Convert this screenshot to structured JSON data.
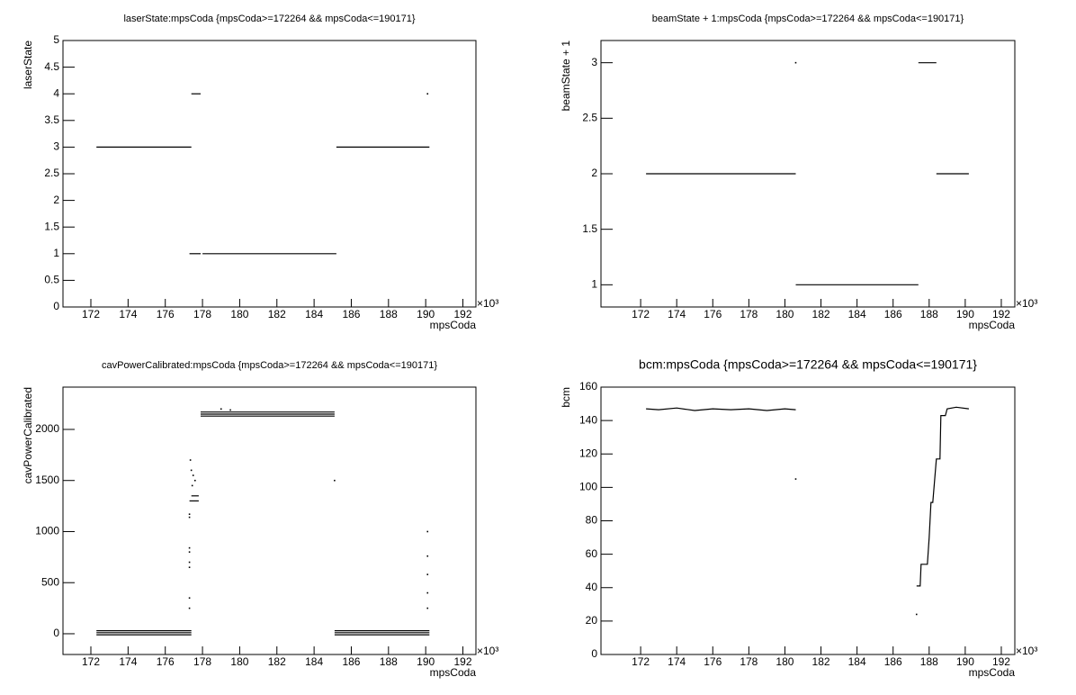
{
  "chart_data": [
    {
      "type": "line",
      "title": "laserState:mpsCoda {mpsCoda>=172264 && mpsCoda<=190171}",
      "x_label": "mpsCoda",
      "y_label": "laserState",
      "x_multiplier": "×10³",
      "color": "#000000",
      "x": [
        172.3,
        177.4,
        null,
        177.4,
        177.9,
        null,
        177.3,
        177.9,
        null,
        178.0,
        185.2,
        null,
        185.2,
        190.2,
        null,
        190.1
      ],
      "values": [
        3,
        3,
        null,
        4,
        4,
        null,
        1,
        1,
        null,
        1,
        1,
        null,
        3,
        3,
        null,
        4
      ],
      "xlim": [
        170.5,
        192.7
      ],
      "xticks": [
        172,
        174,
        176,
        178,
        180,
        182,
        184,
        186,
        188,
        190,
        192
      ],
      "ylim": [
        0,
        5
      ],
      "yticks": [
        0,
        0.5,
        1,
        1.5,
        2,
        2.5,
        3,
        3.5,
        4,
        4.5,
        5
      ]
    },
    {
      "type": "line",
      "title": "beamState + 1:mpsCoda {mpsCoda>=172264 && mpsCoda<=190171}",
      "x_label": "mpsCoda",
      "y_label": "beamState + 1",
      "x_multiplier": "×10³",
      "color": "#000000",
      "x": [
        172.3,
        180.6,
        null,
        180.6,
        null,
        180.6,
        187.4,
        null,
        187.4,
        188.4,
        null,
        188.4,
        190.2
      ],
      "values": [
        2,
        2,
        null,
        3,
        null,
        1,
        1,
        null,
        3,
        3,
        null,
        2,
        2
      ],
      "xlim": [
        169.8,
        192.75
      ],
      "xticks": [
        172,
        174,
        176,
        178,
        180,
        182,
        184,
        186,
        188,
        190,
        192
      ],
      "ylim": [
        0.8,
        3.2
      ],
      "yticks": [
        1,
        1.5,
        2,
        2.5,
        3
      ]
    },
    {
      "type": "line",
      "title": "cavPowerCalibrated:mpsCoda {mpsCoda>=172264 && mpsCoda<=190171}",
      "x_label": "mpsCoda",
      "y_label": "cavPowerCalibrated",
      "x_multiplier": "×10³",
      "color": "#000000",
      "x": [
        172.3,
        177.4,
        null,
        172.3,
        177.4,
        null,
        172.3,
        177.4,
        null,
        177.3,
        null,
        177.3,
        null,
        177.3,
        null,
        177.3,
        null,
        177.3,
        null,
        177.3,
        null,
        177.3,
        null,
        177.3,
        null,
        177.3,
        177.8,
        null,
        177.4,
        177.8,
        null,
        177.35,
        null,
        177.4,
        null,
        177.5,
        null,
        177.6,
        null,
        177.45,
        null,
        177.9,
        185.1,
        null,
        177.9,
        185.1,
        null,
        177.9,
        185.1,
        null,
        179,
        null,
        179.5,
        null,
        185.1,
        null,
        185.1,
        190.2,
        null,
        185.1,
        190.2,
        null,
        185.1,
        190.2,
        null,
        190.1,
        null,
        190.1,
        null,
        190.1,
        null,
        190.1,
        null,
        190.1
      ],
      "values": [
        -10,
        -10,
        null,
        10,
        10,
        null,
        30,
        30,
        null,
        1170,
        null,
        1140,
        null,
        840,
        null,
        800,
        null,
        700,
        null,
        650,
        null,
        350,
        null,
        250,
        null,
        1300,
        1300,
        null,
        1350,
        1350,
        null,
        1700,
        null,
        1600,
        null,
        1550,
        null,
        1500,
        null,
        1450,
        null,
        2130,
        2130,
        null,
        2150,
        2150,
        null,
        2170,
        2170,
        null,
        2200,
        null,
        2190,
        null,
        1500,
        null,
        -10,
        -10,
        null,
        10,
        10,
        null,
        30,
        30,
        null,
        1000,
        null,
        760,
        null,
        580,
        null,
        400,
        null,
        250
      ],
      "xlim": [
        170.5,
        192.7
      ],
      "xticks": [
        172,
        174,
        176,
        178,
        180,
        182,
        184,
        186,
        188,
        190,
        192
      ],
      "ylim": [
        -203,
        2414
      ],
      "yticks": [
        0,
        500,
        1000,
        1500,
        2000
      ]
    },
    {
      "type": "line",
      "title": "bcm:mpsCoda {mpsCoda>=172264 && mpsCoda<=190171}",
      "x_label": "mpsCoda",
      "y_label": "bcm",
      "x_multiplier": "×10³",
      "color": "#000000",
      "x": [
        172.3,
        173,
        174,
        175,
        176,
        177,
        178,
        179,
        180,
        180.6,
        null,
        180.6,
        null,
        187.3,
        null,
        187.3,
        187.5,
        187.55,
        187.9,
        188.0,
        188.1,
        188.2,
        188.4,
        188.6,
        188.65,
        188.9,
        189.0,
        189.5,
        190.2
      ],
      "values": [
        147,
        146.5,
        147.5,
        146,
        147,
        146.5,
        147,
        146,
        147,
        146.5,
        null,
        105,
        null,
        24,
        null,
        41,
        41,
        54,
        54,
        70,
        91,
        91,
        117,
        117,
        143,
        143,
        147,
        148,
        147
      ],
      "xlim": [
        169.8,
        192.75
      ],
      "xticks": [
        172,
        174,
        176,
        178,
        180,
        182,
        184,
        186,
        188,
        190,
        192
      ],
      "ylim": [
        0,
        160
      ],
      "yticks": [
        0,
        20,
        40,
        60,
        80,
        100,
        120,
        140,
        160
      ]
    }
  ]
}
